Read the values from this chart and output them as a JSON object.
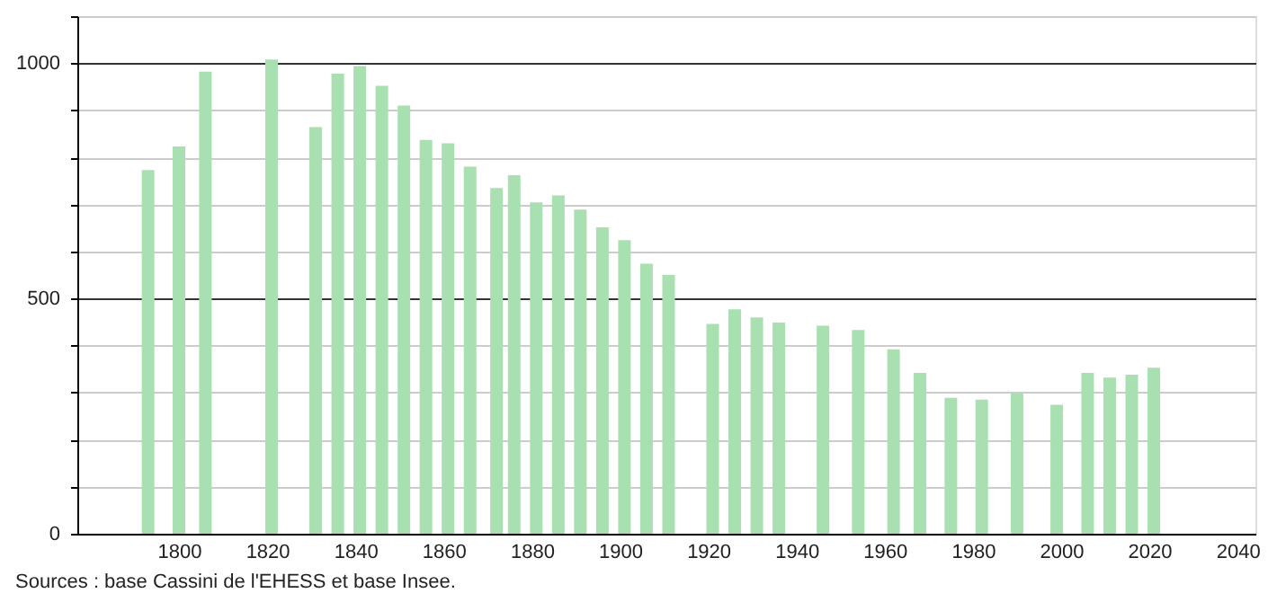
{
  "chart_data": {
    "type": "bar",
    "x": [
      1793,
      1800,
      1806,
      1821,
      1831,
      1836,
      1841,
      1846,
      1851,
      1856,
      1861,
      1866,
      1872,
      1876,
      1881,
      1886,
      1891,
      1896,
      1901,
      1906,
      1911,
      1921,
      1926,
      1931,
      1936,
      1946,
      1954,
      1962,
      1968,
      1975,
      1982,
      1990,
      1999,
      2006,
      2011,
      2016,
      2021
    ],
    "values": [
      773,
      823,
      982,
      1008,
      864,
      978,
      994,
      952,
      910,
      837,
      830,
      780,
      735,
      762,
      704,
      719,
      689,
      651,
      624,
      574,
      550,
      446,
      477,
      460,
      449,
      442,
      433,
      392,
      342,
      289,
      285,
      299,
      274,
      342,
      332,
      338,
      353
    ],
    "color": "#a9e0b1",
    "xlim": [
      1779,
      2042
    ],
    "xticks": [
      1800,
      1820,
      1840,
      1860,
      1880,
      1900,
      1920,
      1940,
      1960,
      1980,
      2000,
      2020,
      2040
    ],
    "ylim": [
      0,
      1100
    ],
    "yticks": [
      0,
      {
        "value": 100,
        "label": null
      },
      {
        "value": 200,
        "label": null
      },
      {
        "value": 300,
        "label": null
      },
      {
        "value": 400,
        "label": null
      },
      500,
      {
        "value": 600,
        "label": null
      },
      {
        "value": 700,
        "label": null
      },
      {
        "value": 800,
        "label": null
      },
      {
        "value": 900,
        "label": null
      },
      1000,
      {
        "value": 1100,
        "label": null
      }
    ],
    "grid": "y",
    "annotations": [
      "Sources : base Cassini de l'EHESS et base Insee."
    ]
  }
}
